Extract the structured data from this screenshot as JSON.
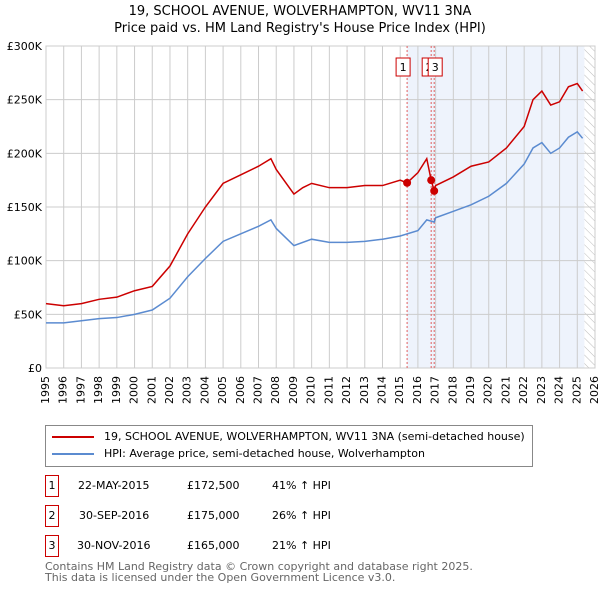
{
  "title": "19, SCHOOL AVENUE, WOLVERHAMPTON, WV11 3NA",
  "subtitle": "Price paid vs. HM Land Registry's House Price Index (HPI)",
  "chart_data": {
    "type": "line",
    "xlim": [
      1995,
      2026
    ],
    "ylim": [
      0,
      300000
    ],
    "yticks": [
      0,
      50000,
      100000,
      150000,
      200000,
      250000,
      300000
    ],
    "ytick_labels": [
      "£0",
      "£50K",
      "£100K",
      "£150K",
      "£200K",
      "£250K",
      "£300K"
    ],
    "xticks": [
      1995,
      1996,
      1997,
      1998,
      1999,
      2000,
      2001,
      2002,
      2003,
      2004,
      2005,
      2006,
      2007,
      2008,
      2009,
      2010,
      2011,
      2012,
      2013,
      2014,
      2015,
      2016,
      2017,
      2018,
      2019,
      2020,
      2021,
      2022,
      2023,
      2024,
      2025,
      2026
    ],
    "grid": true,
    "shaded_from": 2015.39,
    "data_end": 2025.4,
    "series": [
      {
        "name": "19, SCHOOL AVENUE, WOLVERHAMPTON, WV11 3NA (semi-detached house)",
        "color": "#cc0000",
        "x": [
          1995,
          1996,
          1997,
          1998,
          1999,
          2000,
          2001,
          2002,
          2003,
          2004,
          2005,
          2006,
          2007,
          2007.7,
          2008,
          2009,
          2009.5,
          2010,
          2011,
          2012,
          2013,
          2014,
          2015,
          2015.39,
          2016,
          2016.5,
          2016.75,
          2016.92,
          2017,
          2018,
          2019,
          2020,
          2021,
          2022,
          2022.5,
          2023,
          2023.5,
          2024,
          2024.5,
          2025,
          2025.3
        ],
        "y": [
          60000,
          58000,
          60000,
          64000,
          66000,
          72000,
          76000,
          95000,
          125000,
          150000,
          172000,
          180000,
          188000,
          195000,
          185000,
          162000,
          168000,
          172000,
          168000,
          168000,
          170000,
          170000,
          175000,
          172500,
          182000,
          195000,
          175000,
          165000,
          170000,
          178000,
          188000,
          192000,
          205000,
          225000,
          250000,
          258000,
          245000,
          248000,
          262000,
          265000,
          258000
        ]
      },
      {
        "name": "HPI: Average price, semi-detached house, Wolverhampton",
        "color": "#5b8bd0",
        "x": [
          1995,
          1996,
          1997,
          1998,
          1999,
          2000,
          2001,
          2002,
          2003,
          2004,
          2005,
          2006,
          2007,
          2007.7,
          2008,
          2009,
          2010,
          2011,
          2012,
          2013,
          2014,
          2015,
          2016,
          2016.5,
          2016.92,
          2017,
          2018,
          2019,
          2020,
          2021,
          2022,
          2022.5,
          2023,
          2023.5,
          2024,
          2024.5,
          2025,
          2025.3
        ],
        "y": [
          42000,
          42000,
          44000,
          46000,
          47000,
          50000,
          54000,
          65000,
          85000,
          102000,
          118000,
          125000,
          132000,
          138000,
          130000,
          114000,
          120000,
          117000,
          117000,
          118000,
          120000,
          123000,
          128000,
          138000,
          136000,
          140000,
          146000,
          152000,
          160000,
          172000,
          190000,
          205000,
          210000,
          200000,
          205000,
          215000,
          220000,
          214000
        ]
      }
    ],
    "sales": [
      {
        "label": "1",
        "date": "22-MAY-2015",
        "x": 2015.39,
        "price_value": 172500,
        "price": "£172,500",
        "hpi": "41% ↑ HPI"
      },
      {
        "label": "2",
        "date": "30-SEP-2016",
        "x": 2016.75,
        "price_value": 175000,
        "price": "£175,000",
        "hpi": "26% ↑ HPI"
      },
      {
        "label": "3",
        "date": "30-NOV-2016",
        "x": 2016.92,
        "price_value": 165000,
        "price": "£165,000",
        "hpi": "21% ↑ HPI"
      }
    ]
  },
  "footer": [
    "Contains HM Land Registry data © Crown copyright and database right 2025.",
    "This data is licensed under the Open Government Licence v3.0."
  ]
}
